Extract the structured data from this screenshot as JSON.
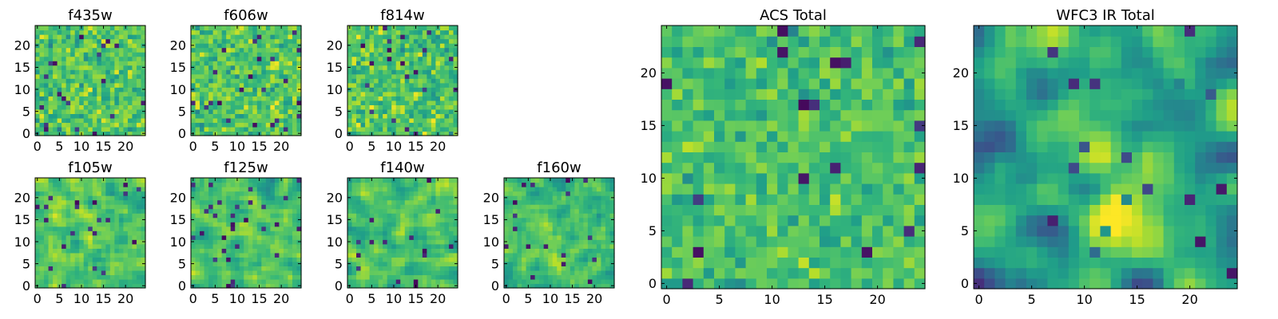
{
  "figure": {
    "background": "#ffffff",
    "colormap": "viridis",
    "colors": {
      "axis": "#000000",
      "frame": "#000000"
    }
  },
  "chart_data": [
    {
      "type": "heatmap",
      "title": "f435w",
      "grid_size": 25,
      "xlim": [
        0,
        24
      ],
      "ylim": [
        0,
        24
      ],
      "xticks": [
        0,
        5,
        10,
        15,
        20
      ],
      "yticks": [
        0,
        5,
        10,
        15,
        20
      ],
      "texture": "noise",
      "seed": 11,
      "smooth": 0,
      "value_range": [
        0,
        1
      ],
      "mean": 0.72,
      "spread": 0.2
    },
    {
      "type": "heatmap",
      "title": "f606w",
      "grid_size": 25,
      "xlim": [
        0,
        24
      ],
      "ylim": [
        0,
        24
      ],
      "xticks": [
        0,
        5,
        10,
        15,
        20
      ],
      "yticks": [
        0,
        5,
        10,
        15,
        20
      ],
      "texture": "noise",
      "seed": 23,
      "smooth": 0,
      "value_range": [
        0,
        1
      ],
      "mean": 0.73,
      "spread": 0.2
    },
    {
      "type": "heatmap",
      "title": "f814w",
      "grid_size": 25,
      "xlim": [
        0,
        24
      ],
      "ylim": [
        0,
        24
      ],
      "xticks": [
        0,
        5,
        10,
        15,
        20
      ],
      "yticks": [
        0,
        5,
        10,
        15,
        20
      ],
      "texture": "noise",
      "seed": 37,
      "smooth": 0,
      "value_range": [
        0,
        1
      ],
      "mean": 0.72,
      "spread": 0.21
    },
    {
      "type": "heatmap",
      "title": "f105w",
      "grid_size": 25,
      "xlim": [
        0,
        24
      ],
      "ylim": [
        0,
        24
      ],
      "xticks": [
        0,
        5,
        10,
        15,
        20
      ],
      "yticks": [
        0,
        5,
        10,
        15,
        20
      ],
      "texture": "blotchy",
      "seed": 41,
      "smooth": 1,
      "value_range": [
        0,
        1
      ],
      "mean": 0.72,
      "spread": 0.22
    },
    {
      "type": "heatmap",
      "title": "f125w",
      "grid_size": 25,
      "xlim": [
        0,
        24
      ],
      "ylim": [
        0,
        24
      ],
      "xticks": [
        0,
        5,
        10,
        15,
        20
      ],
      "yticks": [
        0,
        5,
        10,
        15,
        20
      ],
      "texture": "blotchy",
      "seed": 53,
      "smooth": 1,
      "value_range": [
        0,
        1
      ],
      "mean": 0.72,
      "spread": 0.22
    },
    {
      "type": "heatmap",
      "title": "f140w",
      "grid_size": 25,
      "xlim": [
        0,
        24
      ],
      "ylim": [
        0,
        24
      ],
      "xticks": [
        0,
        5,
        10,
        15,
        20
      ],
      "yticks": [
        0,
        5,
        10,
        15,
        20
      ],
      "texture": "blotchy",
      "seed": 67,
      "smooth": 1,
      "value_range": [
        0,
        1
      ],
      "mean": 0.72,
      "spread": 0.22
    },
    {
      "type": "heatmap",
      "title": "f160w",
      "grid_size": 25,
      "xlim": [
        0,
        24
      ],
      "ylim": [
        0,
        24
      ],
      "xticks": [
        0,
        5,
        10,
        15,
        20
      ],
      "yticks": [
        0,
        5,
        10,
        15,
        20
      ],
      "texture": "blotchy",
      "seed": 79,
      "smooth": 1,
      "value_range": [
        0,
        1
      ],
      "mean": 0.7,
      "spread": 0.23
    },
    {
      "type": "heatmap",
      "title": "ACS Total",
      "grid_size": 25,
      "xlim": [
        0,
        24
      ],
      "ylim": [
        0,
        24
      ],
      "xticks": [
        0,
        5,
        10,
        15,
        20
      ],
      "yticks": [
        0,
        5,
        10,
        15,
        20
      ],
      "texture": "noise",
      "seed": 97,
      "smooth": 0,
      "value_range": [
        0,
        1
      ],
      "mean": 0.7,
      "spread": 0.16
    },
    {
      "type": "heatmap",
      "title": "WFC3 IR Total",
      "grid_size": 25,
      "xlim": [
        0,
        24
      ],
      "ylim": [
        0,
        24
      ],
      "xticks": [
        0,
        5,
        10,
        15,
        20
      ],
      "yticks": [
        0,
        5,
        10,
        15,
        20
      ],
      "texture": "smooth",
      "seed": 113,
      "smooth": 2,
      "value_range": [
        0,
        1
      ],
      "mean": 0.55,
      "spread": 0.2,
      "bright_regions": [
        {
          "x": 13,
          "y": 6,
          "strength": 0.45,
          "radius": 2.5
        },
        {
          "x": 12,
          "y": 13,
          "strength": 0.3,
          "radius": 2.0
        },
        {
          "x": 20,
          "y": 19,
          "strength": 0.3,
          "radius": 2.0
        }
      ]
    }
  ]
}
